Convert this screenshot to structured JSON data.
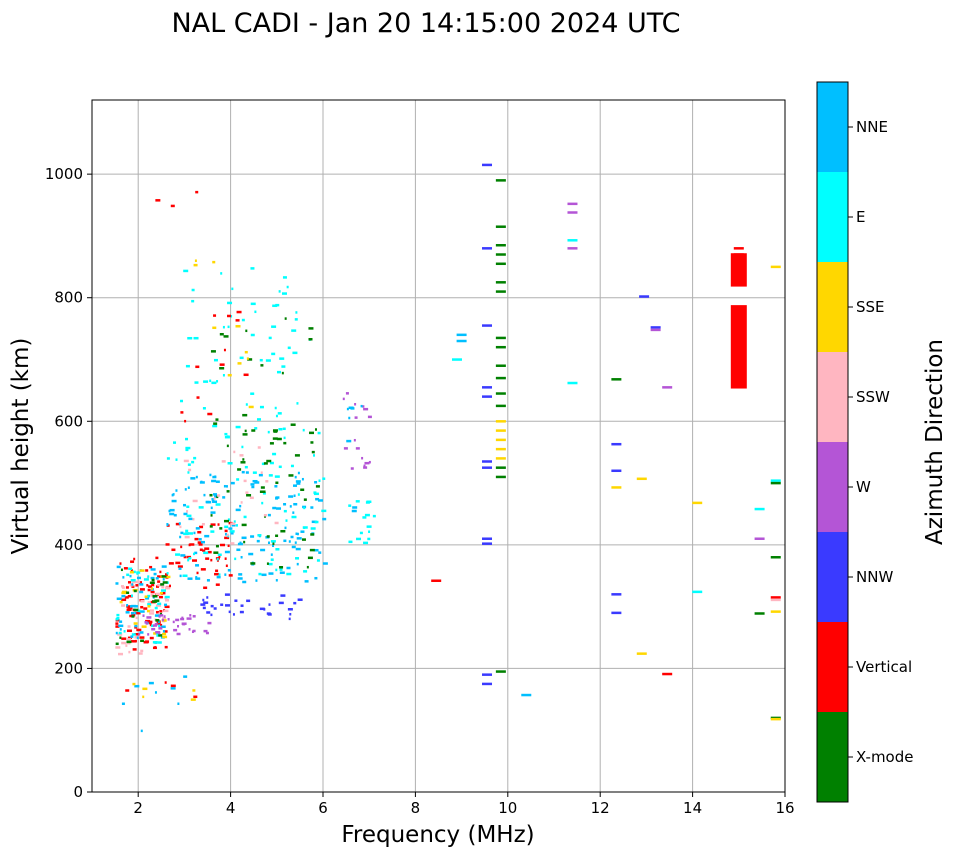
{
  "chart_data": {
    "type": "scatter",
    "title": "NAL CADI - Jan 20 14:15:00 2024 UTC",
    "xlabel": "Frequency (MHz)",
    "ylabel": "Virtual height (km)",
    "xlim": [
      1,
      16
    ],
    "ylim": [
      0,
      1120
    ],
    "xticks": [
      2,
      4,
      6,
      8,
      10,
      12,
      14,
      16
    ],
    "yticks": [
      0,
      200,
      400,
      600,
      800,
      1000
    ],
    "grid": true,
    "colorbar": {
      "label": "Azimuth Direction",
      "entries": [
        {
          "name": "X-mode",
          "color": "#008000"
        },
        {
          "name": "Vertical",
          "color": "#ff0000"
        },
        {
          "name": "NNW",
          "color": "#3a3aff"
        },
        {
          "name": "W",
          "color": "#b455d6"
        },
        {
          "name": "SSW",
          "color": "#ffb6c1"
        },
        {
          "name": "SSE",
          "color": "#ffd700"
        },
        {
          "name": "E",
          "color": "#00ffff"
        },
        {
          "name": "NNE",
          "color": "#00bfff"
        }
      ]
    },
    "clusters": [
      {
        "direction": "Vertical",
        "x": [
          1.5,
          2.6
        ],
        "y": [
          230,
          380
        ],
        "n": 80
      },
      {
        "direction": "SSW",
        "x": [
          1.5,
          2.6
        ],
        "y": [
          220,
          360
        ],
        "n": 40
      },
      {
        "direction": "NNE",
        "x": [
          1.5,
          2.6
        ],
        "y": [
          240,
          370
        ],
        "n": 45
      },
      {
        "direction": "E",
        "x": [
          1.5,
          2.6
        ],
        "y": [
          240,
          370
        ],
        "n": 30
      },
      {
        "direction": "SSE",
        "x": [
          1.5,
          2.6
        ],
        "y": [
          250,
          360
        ],
        "n": 20
      },
      {
        "direction": "X-mode",
        "x": [
          1.5,
          2.6
        ],
        "y": [
          240,
          370
        ],
        "n": 20
      },
      {
        "direction": "W",
        "x": [
          2.0,
          3.6
        ],
        "y": [
          255,
          290
        ],
        "n": 35
      },
      {
        "direction": "NNW",
        "x": [
          3.3,
          5.6
        ],
        "y": [
          280,
          320
        ],
        "n": 30
      },
      {
        "direction": "Vertical",
        "x": [
          2.5,
          4.0
        ],
        "y": [
          330,
          440
        ],
        "n": 45
      },
      {
        "direction": "NNE",
        "x": [
          2.6,
          6.0
        ],
        "y": [
          340,
          520
        ],
        "n": 140
      },
      {
        "direction": "E",
        "x": [
          2.6,
          6.0
        ],
        "y": [
          350,
          600
        ],
        "n": 90
      },
      {
        "direction": "X-mode",
        "x": [
          3.5,
          6.0
        ],
        "y": [
          360,
          600
        ],
        "n": 50
      },
      {
        "direction": "SSW",
        "x": [
          2.8,
          5.0
        ],
        "y": [
          400,
          560
        ],
        "n": 25
      },
      {
        "direction": "E",
        "x": [
          2.9,
          5.7
        ],
        "y": [
          600,
          850
        ],
        "n": 55
      },
      {
        "direction": "Vertical",
        "x": [
          2.9,
          4.5
        ],
        "y": [
          600,
          780
        ],
        "n": 12
      },
      {
        "direction": "X-mode",
        "x": [
          3.5,
          5.8
        ],
        "y": [
          560,
          770
        ],
        "n": 18
      },
      {
        "direction": "SSE",
        "x": [
          2.9,
          4.5
        ],
        "y": [
          620,
          870
        ],
        "n": 10
      },
      {
        "direction": "W",
        "x": [
          6.4,
          7.0
        ],
        "y": [
          520,
          650
        ],
        "n": 16
      },
      {
        "direction": "E",
        "x": [
          6.5,
          7.1
        ],
        "y": [
          400,
          480
        ],
        "n": 14
      },
      {
        "direction": "NNE",
        "x": [
          6.5,
          6.9
        ],
        "y": [
          400,
          630
        ],
        "n": 8
      },
      {
        "direction": "NNE",
        "x": [
          1.5,
          3.2
        ],
        "y": [
          85,
          190
        ],
        "n": 8
      },
      {
        "direction": "SSE",
        "x": [
          1.5,
          3.2
        ],
        "y": [
          140,
          190
        ],
        "n": 5
      },
      {
        "direction": "Vertical",
        "x": [
          1.5,
          3.2
        ],
        "y": [
          150,
          190
        ],
        "n": 4
      },
      {
        "direction": "Vertical",
        "x": [
          2.0,
          3.5
        ],
        "y": [
          940,
          1010
        ],
        "n": 3
      }
    ],
    "segments": [
      {
        "direction": "Vertical",
        "x": 8.45,
        "y": 342
      },
      {
        "direction": "NNE",
        "x": 9.0,
        "y": 740
      },
      {
        "direction": "NNE",
        "x": 9.0,
        "y": 730
      },
      {
        "direction": "E",
        "x": 8.9,
        "y": 700
      },
      {
        "direction": "NNW",
        "x": 9.55,
        "y": 1015
      },
      {
        "direction": "NNW",
        "x": 9.55,
        "y": 880
      },
      {
        "direction": "NNW",
        "x": 9.55,
        "y": 755
      },
      {
        "direction": "NNW",
        "x": 9.55,
        "y": 655
      },
      {
        "direction": "NNW",
        "x": 9.55,
        "y": 640
      },
      {
        "direction": "NNW",
        "x": 9.55,
        "y": 535
      },
      {
        "direction": "NNW",
        "x": 9.55,
        "y": 525
      },
      {
        "direction": "NNW",
        "x": 9.55,
        "y": 410
      },
      {
        "direction": "NNW",
        "x": 9.55,
        "y": 402
      },
      {
        "direction": "NNW",
        "x": 9.55,
        "y": 190
      },
      {
        "direction": "NNW",
        "x": 9.55,
        "y": 175
      },
      {
        "direction": "X-mode",
        "x": 9.85,
        "y": 990
      },
      {
        "direction": "X-mode",
        "x": 9.85,
        "y": 915
      },
      {
        "direction": "X-mode",
        "x": 9.85,
        "y": 885
      },
      {
        "direction": "X-mode",
        "x": 9.85,
        "y": 870
      },
      {
        "direction": "X-mode",
        "x": 9.85,
        "y": 855
      },
      {
        "direction": "X-mode",
        "x": 9.85,
        "y": 825
      },
      {
        "direction": "X-mode",
        "x": 9.85,
        "y": 810
      },
      {
        "direction": "X-mode",
        "x": 9.85,
        "y": 735
      },
      {
        "direction": "X-mode",
        "x": 9.85,
        "y": 720
      },
      {
        "direction": "X-mode",
        "x": 9.85,
        "y": 690
      },
      {
        "direction": "X-mode",
        "x": 9.85,
        "y": 670
      },
      {
        "direction": "X-mode",
        "x": 9.85,
        "y": 645
      },
      {
        "direction": "X-mode",
        "x": 9.85,
        "y": 625
      },
      {
        "direction": "X-mode",
        "x": 9.85,
        "y": 525
      },
      {
        "direction": "X-mode",
        "x": 9.85,
        "y": 510
      },
      {
        "direction": "X-mode",
        "x": 9.85,
        "y": 195
      },
      {
        "direction": "SSE",
        "x": 9.85,
        "y": 600
      },
      {
        "direction": "SSE",
        "x": 9.85,
        "y": 585
      },
      {
        "direction": "SSE",
        "x": 9.85,
        "y": 570
      },
      {
        "direction": "SSE",
        "x": 9.85,
        "y": 555
      },
      {
        "direction": "SSE",
        "x": 9.85,
        "y": 540
      },
      {
        "direction": "NNE",
        "x": 10.4,
        "y": 157
      },
      {
        "direction": "W",
        "x": 11.4,
        "y": 952
      },
      {
        "direction": "W",
        "x": 11.4,
        "y": 938
      },
      {
        "direction": "W",
        "x": 11.4,
        "y": 880
      },
      {
        "direction": "E",
        "x": 11.4,
        "y": 893
      },
      {
        "direction": "E",
        "x": 11.4,
        "y": 662
      },
      {
        "direction": "X-mode",
        "x": 12.35,
        "y": 668
      },
      {
        "direction": "NNW",
        "x": 12.35,
        "y": 563
      },
      {
        "direction": "NNW",
        "x": 12.35,
        "y": 520
      },
      {
        "direction": "NNW",
        "x": 12.35,
        "y": 320
      },
      {
        "direction": "NNW",
        "x": 12.35,
        "y": 290
      },
      {
        "direction": "SSE",
        "x": 12.35,
        "y": 493
      },
      {
        "direction": "SSE",
        "x": 12.9,
        "y": 507
      },
      {
        "direction": "SSE",
        "x": 12.9,
        "y": 224
      },
      {
        "direction": "NNW",
        "x": 12.95,
        "y": 802
      },
      {
        "direction": "NNW",
        "x": 13.2,
        "y": 752
      },
      {
        "direction": "W",
        "x": 13.2,
        "y": 748
      },
      {
        "direction": "W",
        "x": 13.45,
        "y": 655
      },
      {
        "direction": "Vertical",
        "x": 13.45,
        "y": 191
      },
      {
        "direction": "SSE",
        "x": 14.1,
        "y": 468
      },
      {
        "direction": "E",
        "x": 14.1,
        "y": 324
      },
      {
        "direction": "Vertical",
        "x": 15.0,
        "y": 880
      },
      {
        "direction": "Vertical",
        "x": 15.0,
        "y": 870
      },
      {
        "direction": "E",
        "x": 15.45,
        "y": 458
      },
      {
        "direction": "W",
        "x": 15.45,
        "y": 410
      },
      {
        "direction": "X-mode",
        "x": 15.45,
        "y": 289
      },
      {
        "direction": "SSE",
        "x": 15.8,
        "y": 850
      },
      {
        "direction": "E",
        "x": 15.8,
        "y": 504
      },
      {
        "direction": "X-mode",
        "x": 15.8,
        "y": 500
      },
      {
        "direction": "X-mode",
        "x": 15.8,
        "y": 380
      },
      {
        "direction": "Vertical",
        "x": 15.8,
        "y": 315
      },
      {
        "direction": "SSW",
        "x": 15.8,
        "y": 311
      },
      {
        "direction": "SSE",
        "x": 15.8,
        "y": 292
      },
      {
        "direction": "X-mode",
        "x": 15.8,
        "y": 120
      },
      {
        "direction": "SSE",
        "x": 15.8,
        "y": 118
      }
    ],
    "bars": [
      {
        "direction": "Vertical",
        "x": 15.0,
        "y": [
          818,
          872
        ]
      },
      {
        "direction": "Vertical",
        "x": 15.0,
        "y": [
          653,
          788
        ]
      }
    ]
  }
}
